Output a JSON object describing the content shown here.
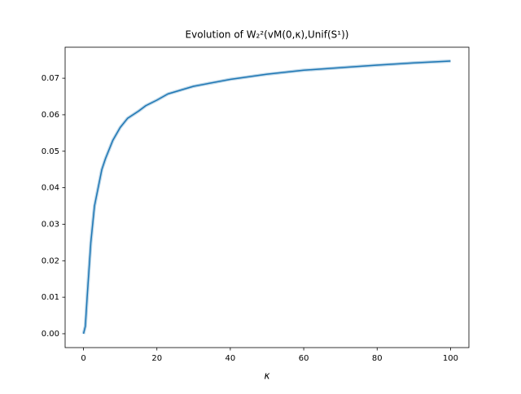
{
  "chart_data": {
    "type": "line",
    "title": "Evolution of W₂²(vM(0,κ),Unif(S¹))",
    "x_label": "κ",
    "x": [
      0,
      0.5,
      1,
      2,
      3,
      4,
      5,
      6,
      8,
      10,
      12,
      15,
      17,
      20,
      23,
      30,
      40,
      50,
      60,
      70,
      80,
      90,
      100
    ],
    "series": [
      {
        "name": "W₂²",
        "color": "#1f77b4",
        "values": [
          0,
          0.002,
          0.01,
          0.025,
          0.035,
          0.04,
          0.045,
          0.048,
          0.053,
          0.0565,
          0.059,
          0.061,
          0.0625,
          0.064,
          0.0657,
          0.0678,
          0.0697,
          0.0711,
          0.0722,
          0.0729,
          0.0736,
          0.0742,
          0.0747
        ]
      }
    ],
    "xlim": [
      -5,
      105
    ],
    "ylim": [
      -0.0038,
      0.0785
    ],
    "xticks": [
      0,
      20,
      40,
      60,
      80,
      100
    ],
    "yticks": [
      {
        "value": 0,
        "label": "0.00"
      },
      {
        "value": 0.01,
        "label": "0.01"
      },
      {
        "value": 0.02,
        "label": "0.02"
      },
      {
        "value": 0.03,
        "label": "0.03"
      },
      {
        "value": 0.04,
        "label": "0.04"
      },
      {
        "value": 0.05,
        "label": "0.05"
      },
      {
        "value": 0.06,
        "label": "0.06"
      },
      {
        "value": 0.07,
        "label": "0.07"
      }
    ],
    "grid": false
  }
}
